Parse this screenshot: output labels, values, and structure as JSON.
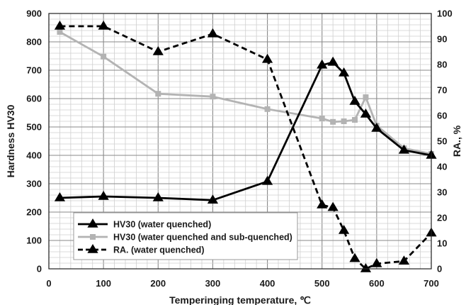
{
  "chart_data": {
    "type": "line",
    "xlabel": "Temperinging temperature, ℃",
    "ylabel": "Hardness HV30",
    "y2label": "RA., %",
    "xlim": [
      0,
      700
    ],
    "ylim": [
      0,
      900
    ],
    "y2lim": [
      0,
      100
    ],
    "x_ticks": [
      "0",
      "100",
      "200",
      "300",
      "400",
      "500",
      "600",
      "700"
    ],
    "y_ticks": [
      "0",
      "100",
      "200",
      "300",
      "400",
      "500",
      "600",
      "700",
      "800",
      "900"
    ],
    "y2_ticks": [
      "0",
      "10",
      "20",
      "30",
      "40",
      "50",
      "60",
      "70",
      "80",
      "90",
      "100"
    ],
    "grid": true,
    "legend_position": "bottom-left",
    "series": [
      {
        "name": "HV30 (water quenched)",
        "axis": "left",
        "color": "#000000",
        "line_style": "solid",
        "marker": "triangle",
        "x": [
          20,
          100,
          200,
          300,
          400,
          500,
          520,
          540,
          560,
          580,
          600,
          650,
          700
        ],
        "y": [
          250,
          255,
          250,
          242,
          308,
          718,
          728,
          690,
          590,
          545,
          495,
          418,
          400
        ]
      },
      {
        "name": "HV30 (water quenched and sub-quenched)",
        "axis": "left",
        "color": "#b3b3b3",
        "line_style": "solid",
        "marker": "square",
        "x": [
          20,
          100,
          200,
          300,
          400,
          500,
          520,
          540,
          560,
          580,
          600,
          650,
          700
        ],
        "y": [
          835,
          748,
          617,
          607,
          563,
          530,
          518,
          520,
          525,
          605,
          505,
          425,
          405
        ]
      },
      {
        "name": "RA. (water quenched)",
        "axis": "right",
        "color": "#000000",
        "line_style": "dashed",
        "marker": "triangle",
        "x": [
          20,
          100,
          200,
          300,
          400,
          500,
          520,
          540,
          560,
          580,
          600,
          650,
          700
        ],
        "y": [
          95,
          95,
          85,
          92,
          82,
          25,
          24,
          15,
          4,
          0,
          2,
          3,
          14
        ]
      }
    ]
  }
}
